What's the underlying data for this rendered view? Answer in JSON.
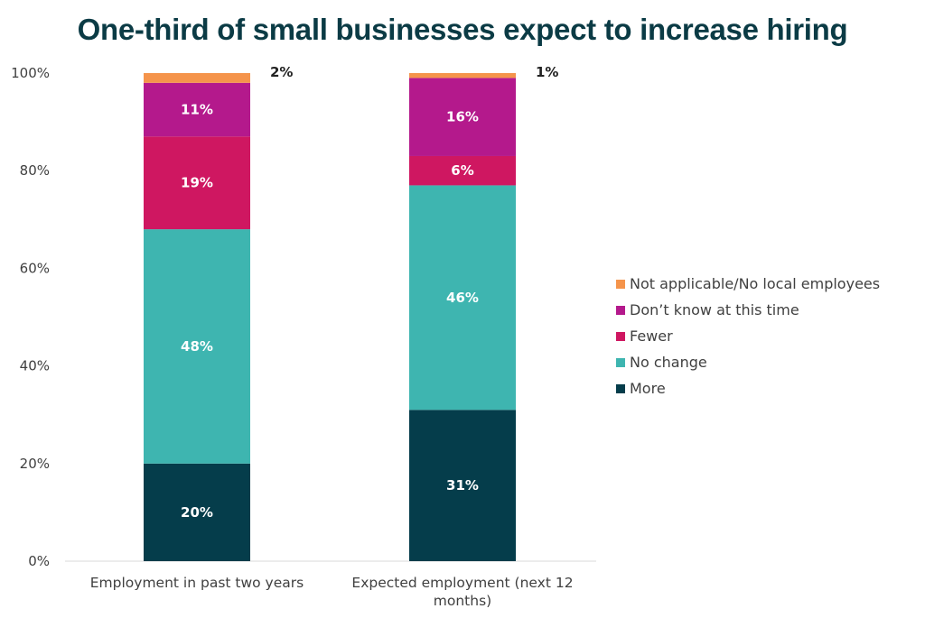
{
  "chart_data": {
    "type": "bar",
    "stacked": true,
    "title": "One-third of small businesses expect to increase hiring",
    "xlabel": "",
    "ylabel": "",
    "ylim": [
      0,
      100
    ],
    "yticks": [
      "0%",
      "20%",
      "40%",
      "60%",
      "80%",
      "100%"
    ],
    "grid": false,
    "legend_position": "right",
    "categories": [
      {
        "lines": [
          "Employment in past two years"
        ]
      },
      {
        "lines": [
          "Expected employment (next 12",
          "months)"
        ]
      }
    ],
    "series": [
      {
        "name": "More",
        "color": "#053d4b",
        "values": [
          20,
          31
        ],
        "labels": [
          "20%",
          "31%"
        ],
        "label_style": "inside"
      },
      {
        "name": "No change",
        "color": "#3eb5b0",
        "values": [
          48,
          46
        ],
        "labels": [
          "48%",
          "46%"
        ],
        "label_style": "inside"
      },
      {
        "name": "Fewer",
        "color": "#cf1761",
        "values": [
          19,
          6
        ],
        "labels": [
          "19%",
          "6%"
        ],
        "label_style": "inside"
      },
      {
        "name": "Don’t know at this time",
        "color": "#b4198c",
        "values": [
          11,
          16
        ],
        "labels": [
          "11%",
          "16%"
        ],
        "label_style": "inside"
      },
      {
        "name": "Not applicable/No local employees",
        "color": "#f5944b",
        "values": [
          2,
          1
        ],
        "labels": [
          "2%",
          "1%"
        ],
        "label_style": "outside"
      }
    ],
    "legend_order": [
      "Not applicable/No local employees",
      "Don’t know at this time",
      "Fewer",
      "No change",
      "More"
    ]
  }
}
